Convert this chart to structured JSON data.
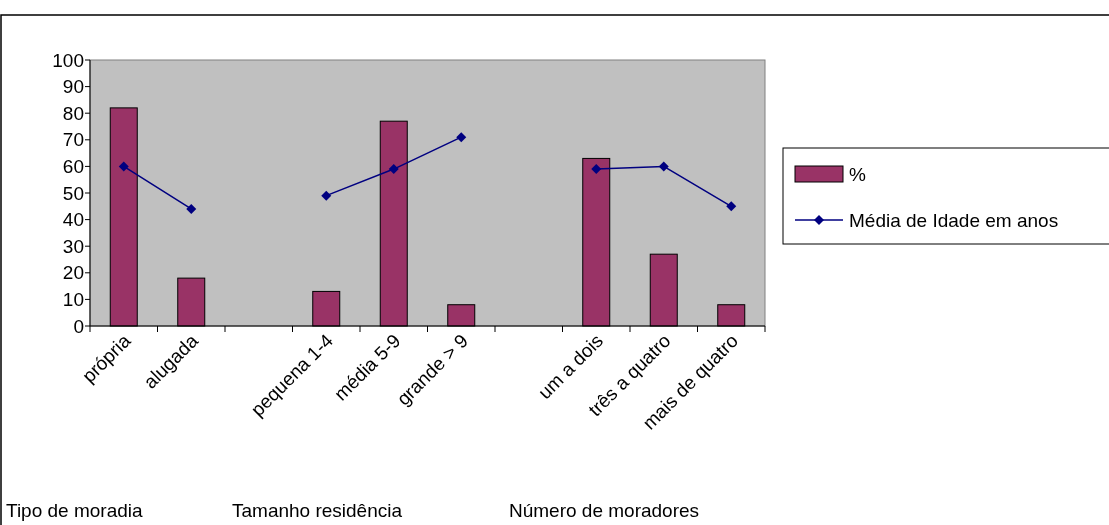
{
  "chart_data": {
    "type": "bar",
    "categories": [
      "própria",
      "alugada",
      null,
      "pequena 1-4",
      "média 5-9",
      "grande > 9",
      null,
      "um a dois",
      "três a quatro",
      "mais de quatro"
    ],
    "series": [
      {
        "name": "%",
        "color": "#993366",
        "values": [
          82,
          18,
          null,
          13,
          77,
          8,
          null,
          63,
          27,
          8
        ]
      },
      {
        "name": "Média de Idade em anos",
        "type": "line",
        "color": "#000080",
        "values": [
          60,
          44,
          null,
          49,
          59,
          71,
          null,
          59,
          60,
          45
        ]
      }
    ],
    "ylim": [
      0,
      100
    ],
    "yticks": [
      0,
      10,
      20,
      30,
      40,
      50,
      60,
      70,
      80,
      90,
      100
    ],
    "grid": false,
    "legend": "right",
    "marker": "diamond",
    "line_style": "solid",
    "annotations": [
      "Tipo de moradia",
      "Tamanho residência",
      "Número de moradores"
    ]
  }
}
